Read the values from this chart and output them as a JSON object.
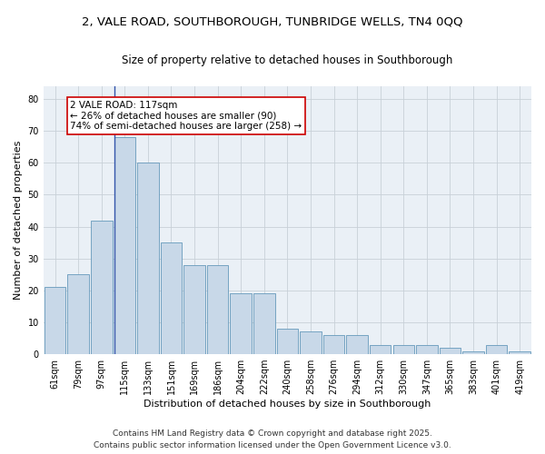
{
  "title_line1": "2, VALE ROAD, SOUTHBOROUGH, TUNBRIDGE WELLS, TN4 0QQ",
  "title_line2": "Size of property relative to detached houses in Southborough",
  "xlabel": "Distribution of detached houses by size in Southborough",
  "ylabel": "Number of detached properties",
  "categories": [
    "61sqm",
    "79sqm",
    "97sqm",
    "115sqm",
    "133sqm",
    "151sqm",
    "169sqm",
    "186sqm",
    "204sqm",
    "222sqm",
    "240sqm",
    "258sqm",
    "276sqm",
    "294sqm",
    "312sqm",
    "330sqm",
    "347sqm",
    "365sqm",
    "383sqm",
    "401sqm",
    "419sqm"
  ],
  "values": [
    21,
    25,
    42,
    68,
    60,
    35,
    28,
    28,
    19,
    19,
    8,
    7,
    6,
    6,
    3,
    3,
    3,
    2,
    1,
    3,
    1
  ],
  "bar_color": "#c8d8e8",
  "bar_edge_color": "#6699bb",
  "vline_index": 3,
  "vline_color": "#3355aa",
  "annotation_text": "2 VALE ROAD: 117sqm\n← 26% of detached houses are smaller (90)\n74% of semi-detached houses are larger (258) →",
  "annotation_box_facecolor": "#ffffff",
  "annotation_box_edgecolor": "#cc0000",
  "ylim": [
    0,
    84
  ],
  "yticks": [
    0,
    10,
    20,
    30,
    40,
    50,
    60,
    70,
    80
  ],
  "grid_color": "#c8d0d8",
  "background_color": "#eaf0f6",
  "footer_text": "Contains HM Land Registry data © Crown copyright and database right 2025.\nContains public sector information licensed under the Open Government Licence v3.0.",
  "title_fontsize": 9.5,
  "subtitle_fontsize": 8.5,
  "axis_label_fontsize": 8,
  "tick_fontsize": 7,
  "annotation_fontsize": 7.5,
  "footer_fontsize": 6.5
}
